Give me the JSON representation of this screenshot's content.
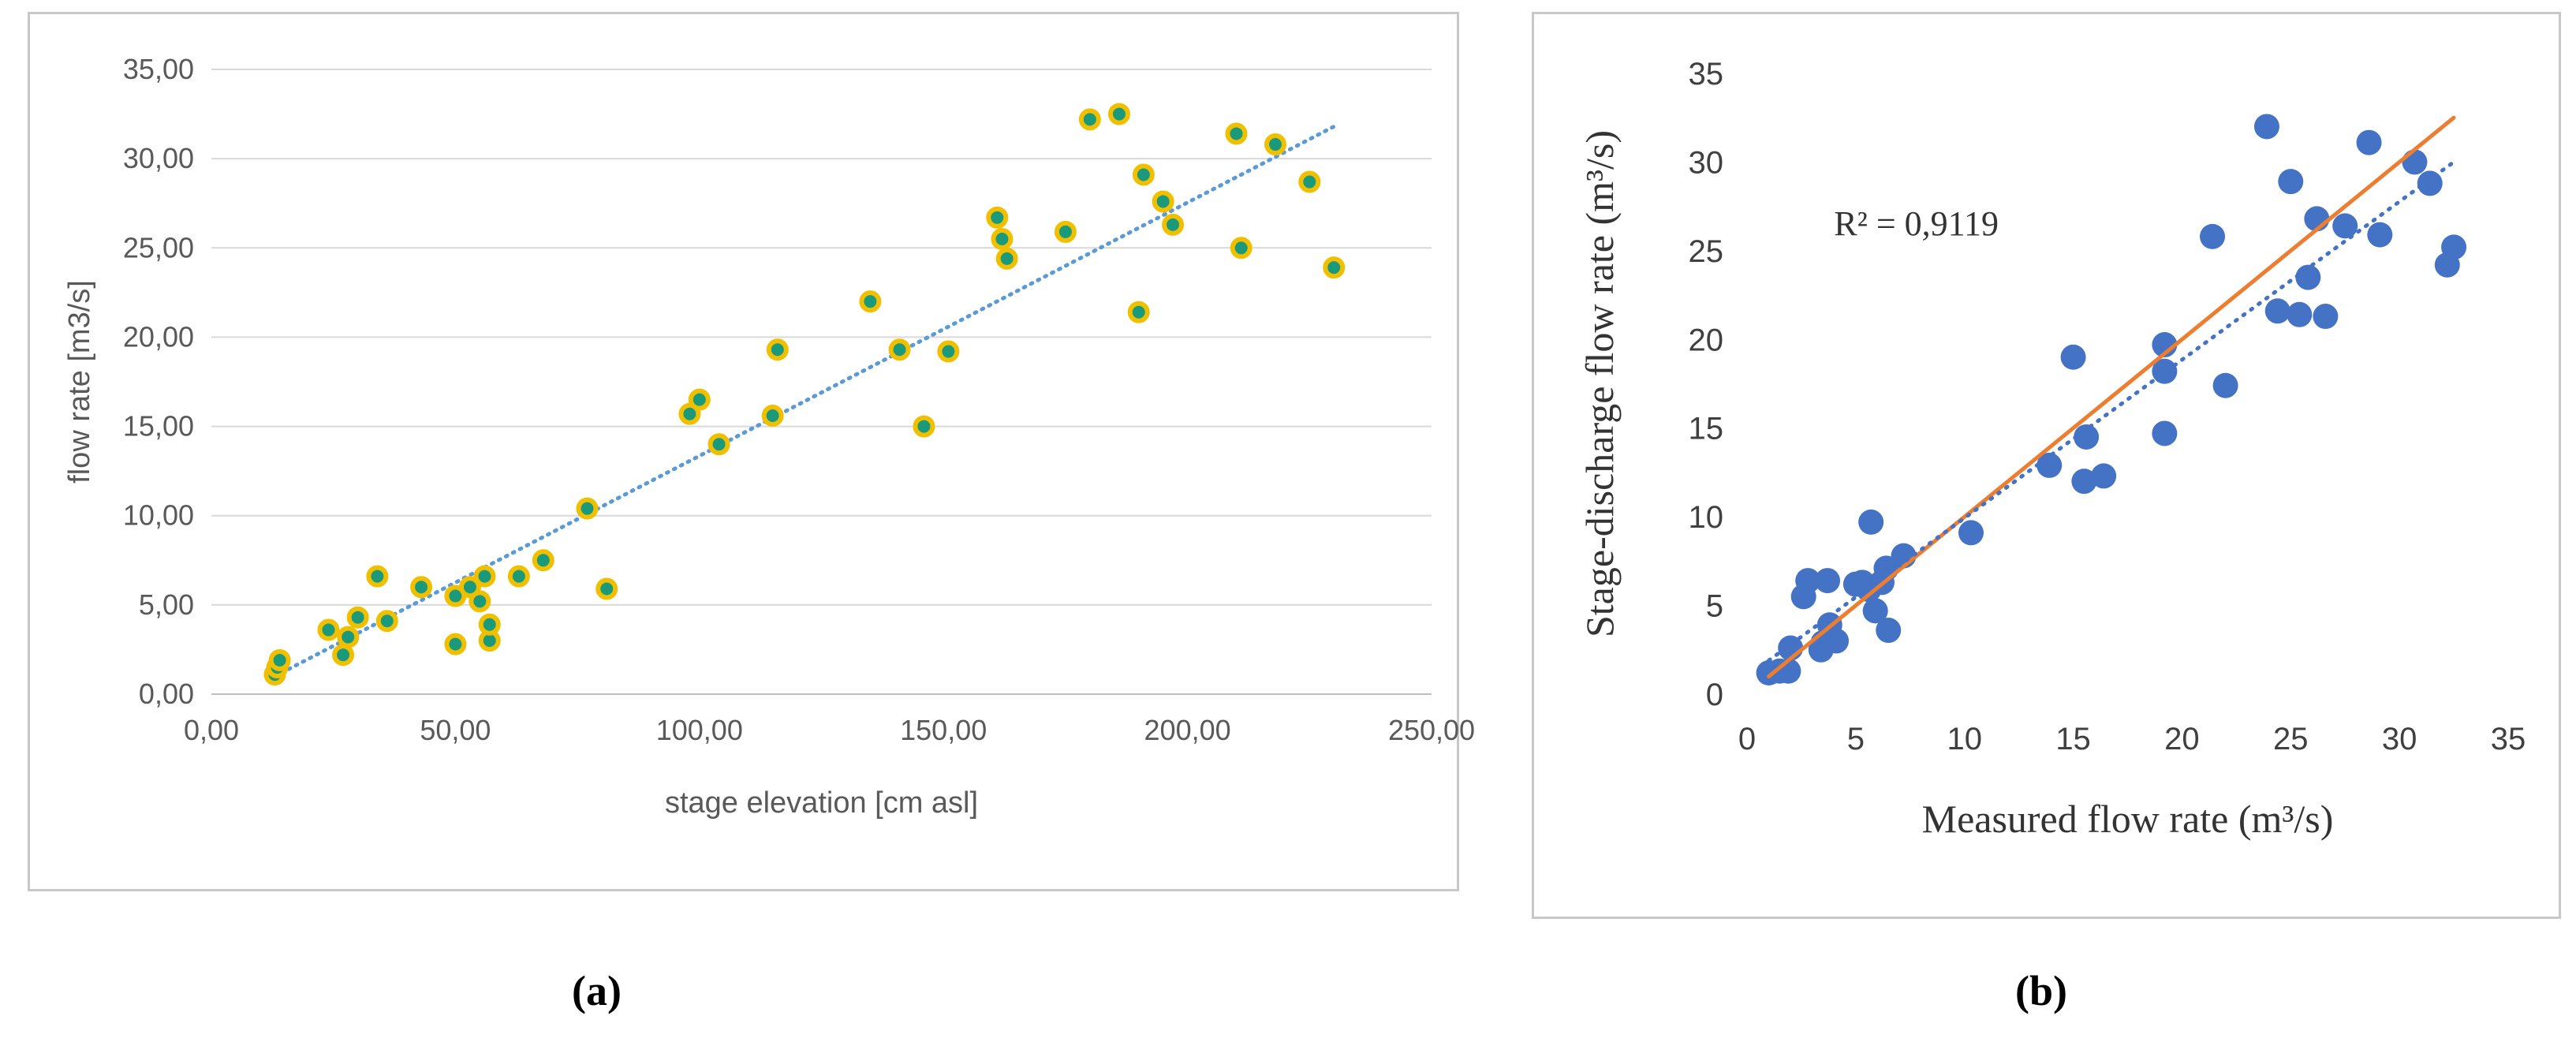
{
  "labels": {
    "panel_a": "(a)",
    "panel_b": "(b)"
  },
  "chart_data": [
    {
      "type": "scatter",
      "title": "",
      "xlabel": "stage elevation  [cm asl]",
      "ylabel": "flow rate  [m3/s]",
      "xlim": [
        0,
        250
      ],
      "ylim": [
        0,
        35
      ],
      "x_ticks": [
        "0,00",
        "50,00",
        "100,00",
        "150,00",
        "200,00",
        "250,00"
      ],
      "y_ticks": [
        "0,00",
        "5,00",
        "10,00",
        "15,00",
        "20,00",
        "25,00",
        "30,00",
        "35,00"
      ],
      "grid": "horizontal",
      "marker_fill": "#1a9a7a",
      "marker_edge": "#f0c000",
      "trendline": {
        "style": "dotted",
        "color": "#5b9bd5",
        "x": [
          13,
          230
        ],
        "y": [
          1.0,
          31.8
        ]
      },
      "series": [
        {
          "points": [
            [
              13,
              1.1
            ],
            [
              13.5,
              1.5
            ],
            [
              14,
              1.9
            ],
            [
              24,
              3.6
            ],
            [
              27,
              2.2
            ],
            [
              28,
              3.2
            ],
            [
              30,
              4.3
            ],
            [
              34,
              6.6
            ],
            [
              36,
              4.1
            ],
            [
              43,
              6.0
            ],
            [
              50,
              2.8
            ],
            [
              50,
              5.5
            ],
            [
              53,
              6.0
            ],
            [
              55,
              5.2
            ],
            [
              56,
              6.6
            ],
            [
              57,
              3.0
            ],
            [
              57,
              3.9
            ],
            [
              63,
              6.6
            ],
            [
              68,
              7.5
            ],
            [
              77,
              10.4
            ],
            [
              81,
              5.9
            ],
            [
              98,
              15.7
            ],
            [
              100,
              16.5
            ],
            [
              104,
              14.0
            ],
            [
              115,
              15.6
            ],
            [
              116,
              19.3
            ],
            [
              135,
              22.0
            ],
            [
              141,
              19.3
            ],
            [
              146,
              15.0
            ],
            [
              151,
              19.2
            ],
            [
              161,
              26.7
            ],
            [
              162,
              25.5
            ],
            [
              163,
              24.4
            ],
            [
              175,
              25.9
            ],
            [
              180,
              32.2
            ],
            [
              186,
              32.5
            ],
            [
              190,
              21.4
            ],
            [
              191,
              29.1
            ],
            [
              195,
              27.6
            ],
            [
              197,
              26.3
            ],
            [
              210,
              31.4
            ],
            [
              211,
              25.0
            ],
            [
              218,
              30.8
            ],
            [
              225,
              28.7
            ],
            [
              230,
              23.9
            ]
          ]
        }
      ]
    },
    {
      "type": "scatter",
      "title": "",
      "xlabel": "Measured flow rate (m³/s)",
      "ylabel": "Stage-discharge flow rate (m³/s)",
      "xlim": [
        0,
        35
      ],
      "ylim": [
        0,
        35
      ],
      "x_ticks": [
        "0",
        "5",
        "10",
        "15",
        "20",
        "25",
        "30",
        "35"
      ],
      "y_ticks": [
        "0",
        "5",
        "10",
        "15",
        "20",
        "25",
        "30",
        "35"
      ],
      "grid": "none",
      "annotation": "R² = 0,9119",
      "marker_fill": "#4472c4",
      "lines": [
        {
          "kind": "identity",
          "style": "solid",
          "color": "#ed7d31",
          "x": [
            1,
            32.5
          ],
          "y": [
            1,
            32.5
          ]
        },
        {
          "kind": "trendline",
          "style": "dotted",
          "color": "#4472c4",
          "x": [
            1,
            32.5
          ],
          "y": [
            1.9,
            30.0
          ]
        }
      ],
      "series": [
        {
          "points": [
            [
              1.0,
              1.2
            ],
            [
              1.5,
              1.3
            ],
            [
              1.9,
              1.3
            ],
            [
              2.0,
              2.6
            ],
            [
              2.6,
              5.5
            ],
            [
              2.8,
              6.4
            ],
            [
              3.4,
              2.5
            ],
            [
              3.5,
              2.9
            ],
            [
              3.7,
              6.4
            ],
            [
              3.8,
              3.9
            ],
            [
              4.1,
              3.0
            ],
            [
              5.0,
              6.2
            ],
            [
              5.3,
              6.3
            ],
            [
              5.6,
              5.9
            ],
            [
              5.7,
              9.7
            ],
            [
              5.9,
              4.7
            ],
            [
              6.2,
              6.3
            ],
            [
              6.4,
              7.1
            ],
            [
              6.5,
              3.6
            ],
            [
              7.2,
              7.8
            ],
            [
              10.3,
              9.1
            ],
            [
              13.9,
              12.9
            ],
            [
              15.0,
              19.0
            ],
            [
              15.5,
              12.0
            ],
            [
              15.6,
              14.5
            ],
            [
              16.4,
              12.3
            ],
            [
              19.2,
              19.7
            ],
            [
              19.2,
              18.2
            ],
            [
              19.2,
              14.7
            ],
            [
              21.4,
              25.8
            ],
            [
              22.0,
              17.4
            ],
            [
              23.9,
              32.0
            ],
            [
              24.4,
              21.6
            ],
            [
              25.0,
              28.9
            ],
            [
              25.4,
              21.4
            ],
            [
              25.8,
              23.5
            ],
            [
              26.2,
              26.8
            ],
            [
              26.6,
              21.3
            ],
            [
              27.5,
              26.4
            ],
            [
              28.6,
              31.1
            ],
            [
              29.1,
              25.9
            ],
            [
              30.7,
              30.0
            ],
            [
              31.4,
              28.8
            ],
            [
              32.2,
              24.2
            ],
            [
              32.5,
              25.2
            ]
          ]
        }
      ]
    }
  ]
}
